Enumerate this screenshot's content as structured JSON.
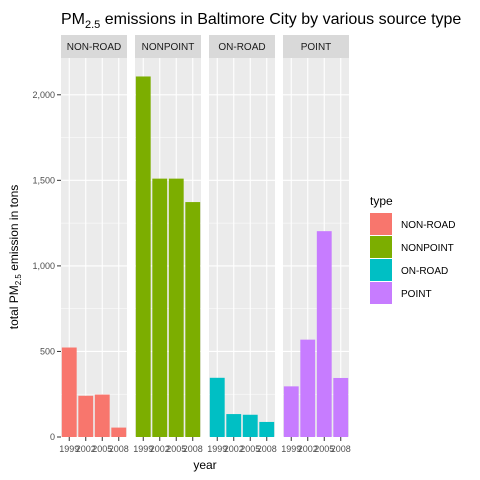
{
  "chart_data": {
    "type": "bar",
    "title": "PM2.5 emissions in Baltimore City by various source type",
    "title_parts": {
      "pre": "PM",
      "sub": "2.5",
      "post": " emissions in Baltimore City by various source type"
    },
    "xlabel": "year",
    "ylabel": "total PM2.5 emission in tons",
    "ylabel_parts": {
      "pre": "total PM",
      "sub": "2.5",
      "post": " emission in tons"
    },
    "categories": [
      "1999",
      "2002",
      "2005",
      "2008"
    ],
    "ylim": [
      0,
      2215
    ],
    "yticks": [
      0,
      500,
      1000,
      1500,
      2000
    ],
    "ytick_labels": [
      "0",
      "500",
      "1,000",
      "1,500",
      "2,000"
    ],
    "grid": true,
    "legend_position": "right",
    "legend_title": "type",
    "series": [
      {
        "name": "NON-ROAD",
        "color": "#F8766D",
        "values": [
          523,
          241,
          248,
          55
        ]
      },
      {
        "name": "NONPOINT",
        "color": "#7CAE00",
        "values": [
          2107,
          1510,
          1510,
          1373
        ]
      },
      {
        "name": "ON-ROAD",
        "color": "#00BFC4",
        "values": [
          346,
          134,
          130,
          88
        ]
      },
      {
        "name": "POINT",
        "color": "#C77CFF",
        "values": [
          296,
          569,
          1203,
          345
        ]
      }
    ]
  }
}
